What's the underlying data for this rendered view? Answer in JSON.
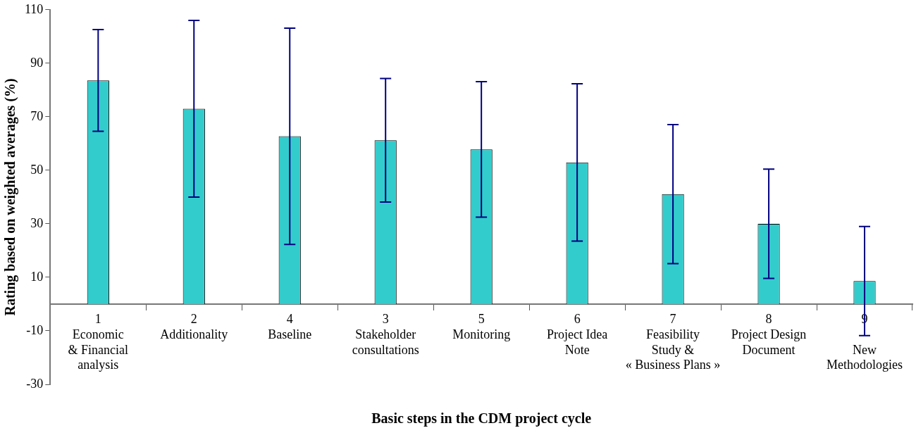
{
  "chart_data": {
    "type": "bar",
    "xlabel": "Basic steps in the CDM project cycle",
    "ylabel": "Rating based on weighted averages (%)",
    "categories": [
      "1\nEconomic\n& Financial\nanalysis",
      "2\nAdditionality",
      "4\nBaseline",
      "3\nStakeholder\nconsultations",
      "5\nMonitoring",
      "6\nProject Idea\nNote",
      "7\nFeasibility\nStudy &\n« Business Plans »",
      "8\nProject Design\nDocument",
      "9\n\nNew\nMethodologies"
    ],
    "values": [
      83.6,
      73,
      62.7,
      61.2,
      57.8,
      52.9,
      41.1,
      30,
      8.6
    ],
    "errors": [
      19,
      33,
      40.4,
      23.1,
      25.3,
      29.4,
      26,
      20.4,
      20.4
    ],
    "color": "#33cccc",
    "ylim": [
      -30,
      110
    ],
    "yticks": [
      -30,
      -10,
      10,
      30,
      50,
      70,
      90,
      110
    ],
    "grid": false,
    "legend": false
  }
}
